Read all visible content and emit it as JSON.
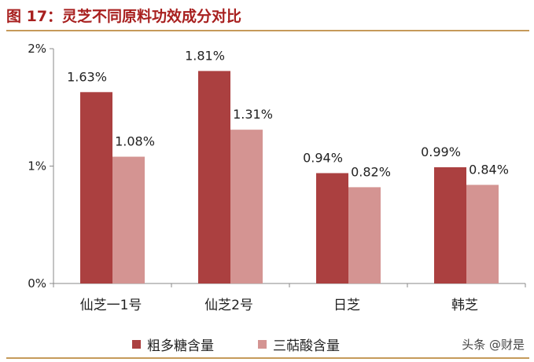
{
  "figure": {
    "title": "图 17：灵芝不同原料功效成分对比",
    "watermark": "头条 @财是"
  },
  "chart_data": {
    "type": "bar",
    "categories": [
      "仙芝一1号",
      "仙芝2号",
      "日芝",
      "韩芝"
    ],
    "series": [
      {
        "name": "粗多糖含量",
        "values": [
          1.63,
          1.81,
          0.94,
          0.99
        ],
        "labels": [
          "1.63%",
          "1.81%",
          "0.94%",
          "0.99%"
        ],
        "color": "#ab4040"
      },
      {
        "name": "三萜酸含量",
        "values": [
          1.08,
          1.31,
          0.82,
          0.84
        ],
        "labels": [
          "1.08%",
          "1.31%",
          "0.82%",
          "0.84%"
        ],
        "color": "#d49492"
      }
    ],
    "yticks": [
      "0%",
      "1%",
      "2%"
    ],
    "ylim": [
      0,
      2
    ],
    "grid": false,
    "legend": "bottom"
  }
}
